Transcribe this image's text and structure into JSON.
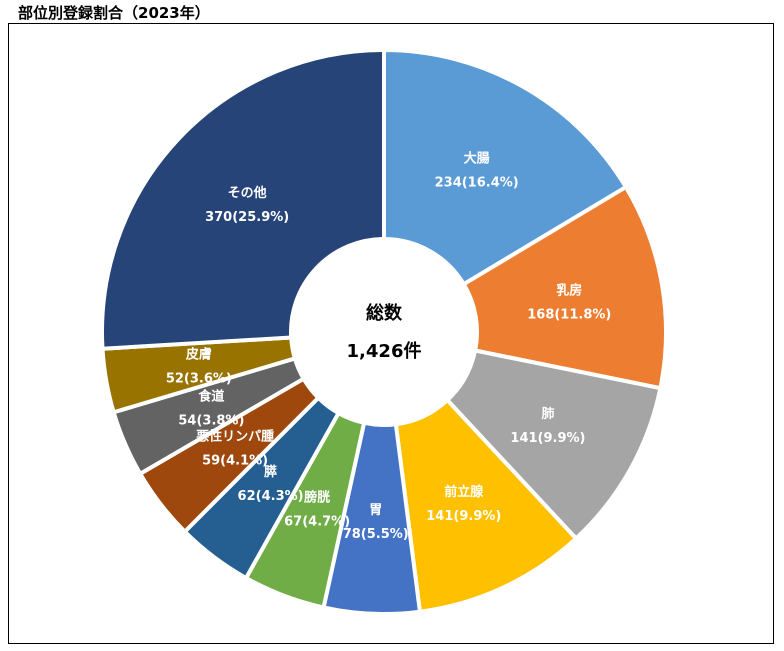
{
  "chart_data": {
    "type": "pie",
    "style": "donut",
    "title": "部位別登録割合（2023年）",
    "center_label": "総数",
    "center_value": "1,426件",
    "total": 1426,
    "slices": [
      {
        "name": "大腸",
        "value": 234,
        "percent": 16.4,
        "color": "#5B9BD5"
      },
      {
        "name": "乳房",
        "value": 168,
        "percent": 11.8,
        "color": "#ED7D31"
      },
      {
        "name": "肺",
        "value": 141,
        "percent": 9.9,
        "color": "#A5A5A5"
      },
      {
        "name": "前立腺",
        "value": 141,
        "percent": 9.9,
        "color": "#FFC000"
      },
      {
        "name": "胃",
        "value": 78,
        "percent": 5.5,
        "color": "#4472C4"
      },
      {
        "name": "膀胱",
        "value": 67,
        "percent": 4.7,
        "color": "#70AD47"
      },
      {
        "name": "膵",
        "value": 62,
        "percent": 4.3,
        "color": "#255E91"
      },
      {
        "name": "悪性リンパ腫",
        "value": 59,
        "percent": 4.1,
        "color": "#9E480E"
      },
      {
        "name": "食道",
        "value": 54,
        "percent": 3.8,
        "color": "#636363"
      },
      {
        "name": "皮膚",
        "value": 52,
        "percent": 3.6,
        "color": "#997300"
      },
      {
        "name": "その他",
        "value": 370,
        "percent": 25.9,
        "color": "#264478"
      }
    ],
    "legend": "none"
  }
}
